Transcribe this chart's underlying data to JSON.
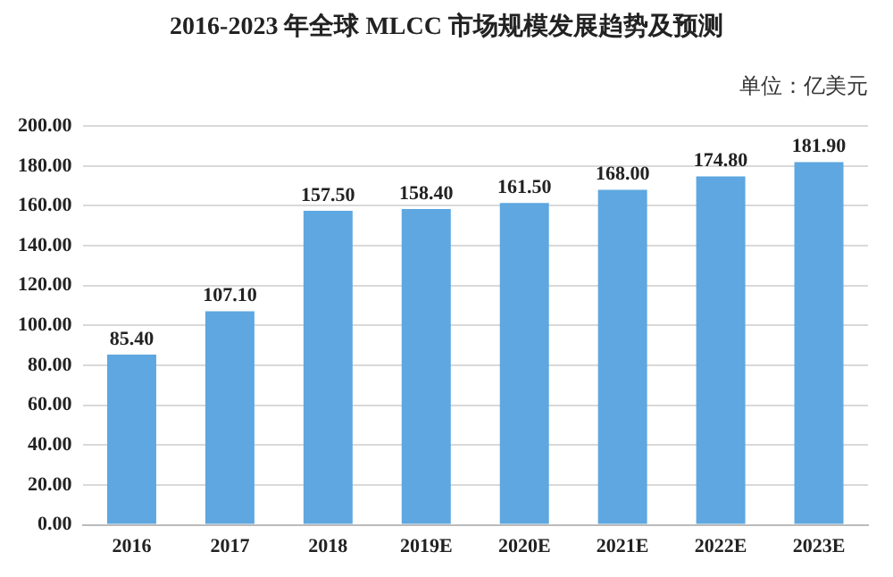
{
  "chart_data": {
    "type": "bar",
    "title": "2016-2023 年全球 MLCC 市场规模发展趋势及预测",
    "annotations": [
      "单位：亿美元"
    ],
    "categories": [
      "2016",
      "2017",
      "2018",
      "2019E",
      "2020E",
      "2021E",
      "2022E",
      "2023E"
    ],
    "values": [
      85.4,
      107.1,
      157.5,
      158.4,
      161.5,
      168,
      174.8,
      181.9
    ],
    "value_labels": [
      "85.40",
      "107.10",
      "157.50",
      "158.40",
      "161.50",
      "168.00",
      "174.80",
      "181.90"
    ],
    "color": "#5ea7e0",
    "ylim": [
      0,
      200
    ],
    "yticks": [
      {
        "value": 0,
        "label": "0.00"
      },
      {
        "value": 20,
        "label": "20.00"
      },
      {
        "value": 40,
        "label": "40.00"
      },
      {
        "value": 60,
        "label": "60.00"
      },
      {
        "value": 80,
        "label": "80.00"
      },
      {
        "value": 100,
        "label": "100.00"
      },
      {
        "value": 120,
        "label": "120.00"
      },
      {
        "value": 140,
        "label": "140.00"
      },
      {
        "value": 160,
        "label": "160.00"
      },
      {
        "value": 180,
        "label": "180.00"
      },
      {
        "value": 200,
        "label": "200.00"
      }
    ],
    "grid": "y",
    "legend": false
  }
}
